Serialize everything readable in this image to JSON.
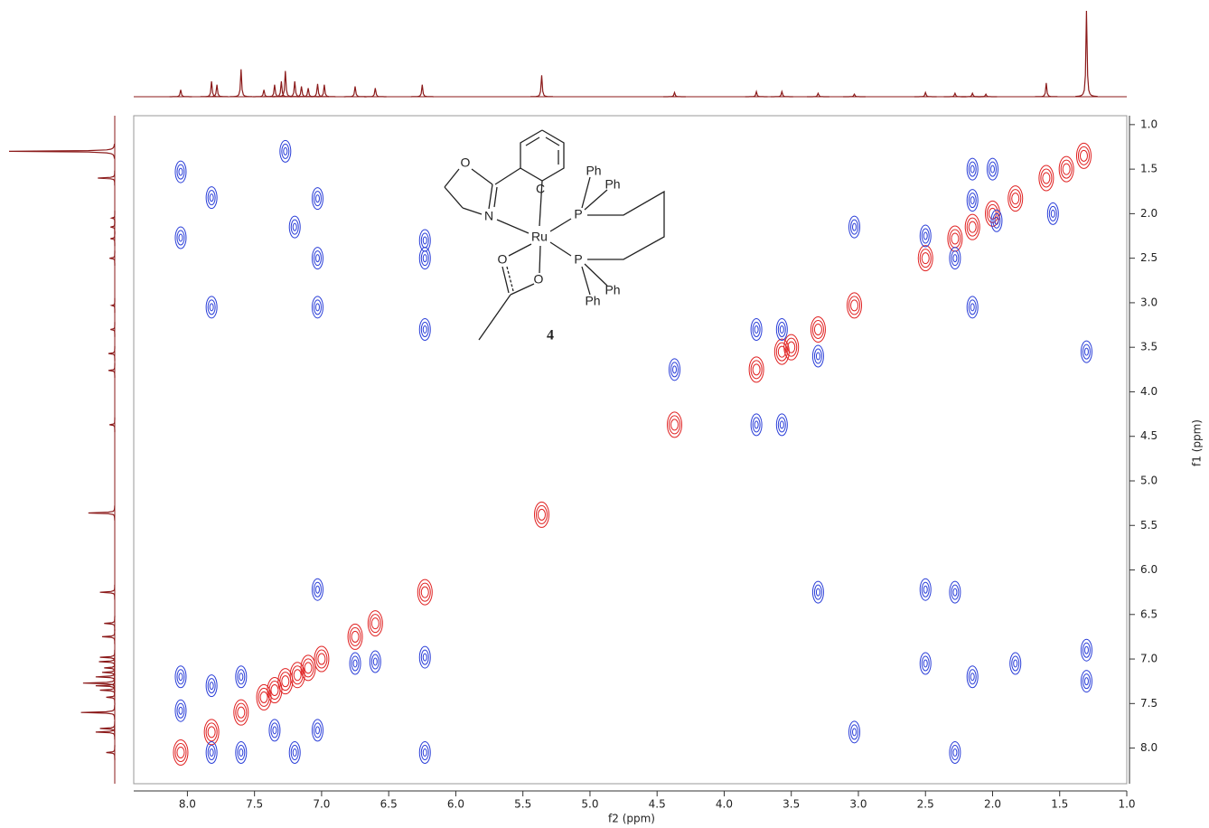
{
  "chart_data": {
    "type": "contour",
    "xlabel": "f2 (ppm)",
    "ylabel": "f1 (ppm)",
    "xlim": [
      8.4,
      1.0
    ],
    "ylim": [
      0.9,
      8.4
    ],
    "xticks": [
      {
        "value": 8,
        "label": "8.0"
      },
      7.5,
      {
        "value": 7,
        "label": "7.0"
      },
      6.5,
      {
        "value": 6,
        "label": "6.0"
      },
      5.5,
      {
        "value": 5,
        "label": "5.0"
      },
      4.5,
      {
        "value": 4,
        "label": "4.0"
      },
      3.5,
      {
        "value": 3,
        "label": "3.0"
      },
      2.5,
      {
        "value": 2,
        "label": "2.0"
      },
      1.5,
      {
        "value": 1,
        "label": "1.0"
      }
    ],
    "yticks": [
      {
        "value": 1,
        "label": "1.0"
      },
      1.5,
      {
        "value": 2,
        "label": "2.0"
      },
      2.5,
      {
        "value": 3,
        "label": "3.0"
      },
      3.5,
      {
        "value": 4,
        "label": "4.0"
      },
      4.5,
      {
        "value": 5,
        "label": "5.0"
      },
      5.5,
      {
        "value": 6,
        "label": "6.0"
      },
      6.5,
      {
        "value": 7,
        "label": "7.0"
      },
      7.5,
      {
        "value": 8,
        "label": "8.0"
      }
    ],
    "series": [
      {
        "color": "#e02020",
        "x": [
          8.05,
          7.82,
          7.6,
          7.43,
          7.35,
          7.27,
          7.18,
          7.1,
          7.0,
          6.75,
          6.6,
          6.23,
          5.36,
          4.37,
          3.76,
          3.57,
          3.5,
          3.3,
          3.03,
          2.5,
          2.28,
          2.15,
          2.0,
          1.83,
          1.6,
          1.45,
          1.32
        ],
        "y": [
          8.05,
          7.82,
          7.6,
          7.43,
          7.35,
          7.25,
          7.18,
          7.1,
          7.0,
          6.75,
          6.6,
          6.25,
          5.38,
          4.37,
          3.75,
          3.55,
          3.5,
          3.3,
          3.03,
          2.5,
          2.28,
          2.15,
          2.0,
          1.83,
          1.6,
          1.5,
          1.35
        ]
      },
      {
        "color": "#2a3ed8",
        "x": [
          8.05,
          8.05,
          8.05,
          8.05,
          7.82,
          7.82,
          7.82,
          7.82,
          7.6,
          7.6,
          7.35,
          7.27,
          7.2,
          7.2,
          7.03,
          7.03,
          7.03,
          7.03,
          7.03,
          6.75,
          6.6,
          6.23,
          6.23,
          6.23,
          6.23,
          6.23,
          4.37,
          3.76,
          3.76,
          3.57,
          3.57,
          3.3,
          3.3,
          3.03,
          3.03,
          2.5,
          2.5,
          2.5,
          2.28,
          2.28,
          2.28,
          2.15,
          2.15,
          2.15,
          2.15,
          2.0,
          1.97,
          1.83,
          1.55,
          1.3,
          1.3,
          1.3
        ],
        "y": [
          1.53,
          2.27,
          7.2,
          7.58,
          1.82,
          3.05,
          7.3,
          8.05,
          7.2,
          8.05,
          7.8,
          1.3,
          2.15,
          8.05,
          1.83,
          2.5,
          3.05,
          6.22,
          7.8,
          7.05,
          7.03,
          2.3,
          2.5,
          3.3,
          6.98,
          8.05,
          3.75,
          3.3,
          4.37,
          3.3,
          4.37,
          3.6,
          6.25,
          2.15,
          7.82,
          2.25,
          6.22,
          7.05,
          2.5,
          6.25,
          8.05,
          1.5,
          1.85,
          3.05,
          7.2,
          1.5,
          2.08,
          7.05,
          2.0,
          3.55,
          6.9,
          7.25
        ]
      }
    ],
    "projection": {
      "x": [
        8.05,
        7.82,
        7.78,
        7.6,
        7.43,
        7.35,
        7.3,
        7.27,
        7.2,
        7.15,
        7.1,
        7.03,
        6.98,
        6.75,
        6.6,
        6.25,
        5.36,
        4.37,
        3.76,
        3.57,
        3.3,
        3.03,
        2.5,
        2.28,
        2.15,
        2.05,
        1.6,
        1.3
      ],
      "values": [
        8,
        18,
        14,
        32,
        8,
        14,
        18,
        30,
        18,
        12,
        10,
        15,
        14,
        12,
        10,
        14,
        25,
        5,
        6,
        6,
        4,
        3,
        5,
        4,
        4,
        3,
        16,
        100
      ],
      "color": "#8b1a1a"
    },
    "structure": {
      "labels": [
        "O",
        "N",
        "Ru",
        "C",
        "P",
        "Ph",
        "Ph",
        "P",
        "Ph",
        "Ph",
        "O",
        "O"
      ],
      "compound": "4"
    }
  }
}
